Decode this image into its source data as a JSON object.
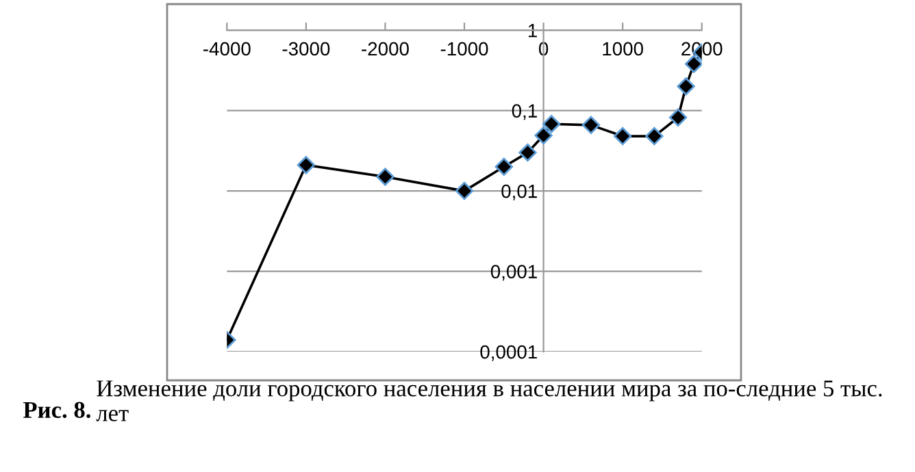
{
  "chart_data": {
    "type": "line",
    "x": [
      -4000,
      -3000,
      -2000,
      -1000,
      -500,
      -200,
      0,
      100,
      600,
      1000,
      1400,
      1700,
      1800,
      1900,
      2000
    ],
    "series": [
      {
        "color": "#000000",
        "values": [
          0.00014,
          0.021,
          0.015,
          0.01,
          0.02,
          0.03,
          0.049,
          0.068,
          0.066,
          0.048,
          0.048,
          0.082,
          0.2,
          0.38,
          0.53
        ]
      }
    ],
    "log": "y",
    "xlim": [
      -4000,
      2000
    ],
    "xticks": [
      -4000,
      -3000,
      -2000,
      -1000,
      0,
      1000,
      2000
    ],
    "ylim": [
      0.0001,
      1
    ],
    "yticks": [
      {
        "value": 0.0001,
        "label": "0,0001"
      },
      {
        "value": 0.001,
        "label": "0,001"
      },
      {
        "value": 0.01,
        "label": "0,01"
      },
      {
        "value": 0.1,
        "label": "0,1"
      },
      {
        "value": 1,
        "label": "1"
      }
    ],
    "grid": "y",
    "marker": "diamond",
    "line_style": "solid",
    "legend": false,
    "annotations": [
      "Рис. 8.",
      "Изменение доли городского населения в населении мира за по-следние 5 тыс. лет"
    ]
  }
}
